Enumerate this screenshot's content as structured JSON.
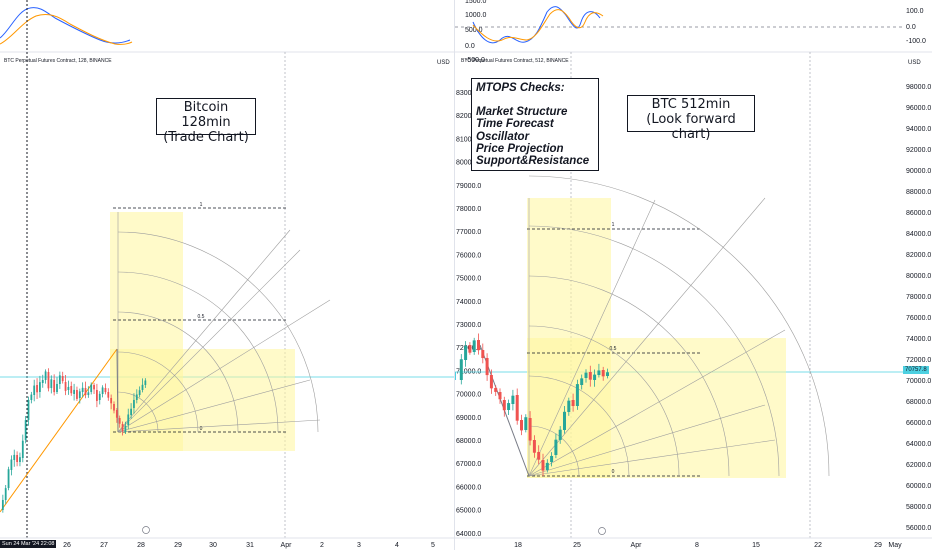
{
  "left_chart": {
    "symbol_label": "BTC Perpetual Futures Contract, 128, BINANCE",
    "note_line1": "Bitcoin 128min",
    "note_line2": "(Trade Chart)",
    "x_date_tag": "Sun 24 Mar '24",
    "x_time_tag": "22:08",
    "x_ticks": [
      "26",
      "27",
      "28",
      "29",
      "30",
      "31",
      "Apr",
      "2",
      "3",
      "4",
      "5"
    ],
    "fib_labels": [
      "1",
      "0.5",
      "0"
    ],
    "currency": "USD",
    "price_axis_hidden": true
  },
  "right_chart": {
    "symbol_label": "BTC Perpetual Futures Contract, 512, BINANCE",
    "note_line1": "BTC 512min",
    "note_line2": "(Look forward chart)",
    "currency": "USD",
    "current_price": "70757.8",
    "left_axis_ticks": [
      "83000.0",
      "82000.0",
      "81000.0",
      "80000.0",
      "79000.0",
      "78000.0",
      "77000.0",
      "76000.0",
      "75000.0",
      "74000.0",
      "73000.0",
      "72000.0",
      "71000.0",
      "70000.0",
      "69000.0",
      "68000.0",
      "67000.0",
      "66000.0",
      "65000.0",
      "64000.0"
    ],
    "right_axis_ticks": [
      "98000.0",
      "96000.0",
      "94000.0",
      "92000.0",
      "90000.0",
      "88000.0",
      "86000.0",
      "84000.0",
      "82000.0",
      "80000.0",
      "78000.0",
      "76000.0",
      "74000.0",
      "72000.0",
      "70000.0",
      "68000.0",
      "66000.0",
      "64000.0",
      "62000.0",
      "60000.0",
      "58000.0",
      "56000.0"
    ],
    "x_ticks": [
      "18",
      "25",
      "Apr",
      "8",
      "15",
      "22",
      "29",
      "May"
    ],
    "fib_labels": [
      "1",
      "0.5",
      "0"
    ],
    "osc_left_ticks": [
      "1500.0",
      "1000.0",
      "500.0",
      "0.0",
      "-500.0"
    ],
    "osc_right_ticks": [
      "100.0",
      "0.0",
      "-100.0"
    ]
  },
  "mtops": {
    "title": "MTOPS Checks:",
    "items": [
      "Market Structure",
      "Time Forecast",
      "Oscillator",
      "Price Projection",
      "Support&Resistance"
    ]
  },
  "colors": {
    "up_candle": "#26a69a",
    "down_candle": "#ef5350",
    "fib_box": "#fff59d",
    "osc_blue": "#2962ff",
    "osc_orange": "#ff9800",
    "price_line": "#4dd0e1"
  }
}
